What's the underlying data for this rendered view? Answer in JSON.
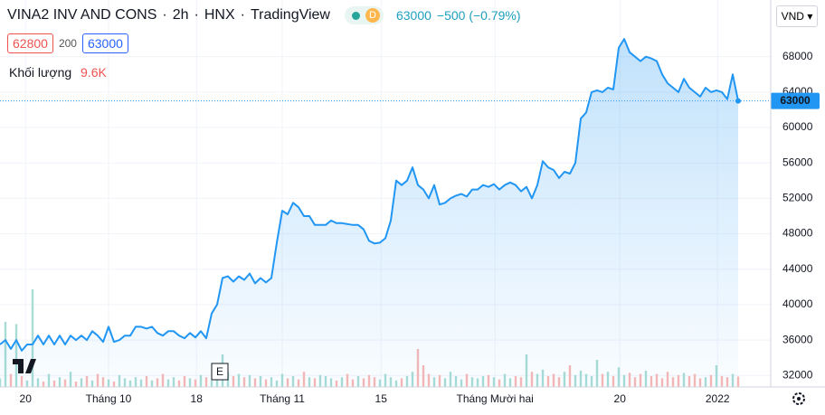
{
  "header": {
    "symbol": "VINA2 INV AND CONS",
    "separator": "·",
    "interval": "2h",
    "exchange": "HNX",
    "source": "TradingView",
    "badge": "D",
    "last": 63000,
    "change": "−500 (−0.79%)",
    "bid": 62800,
    "spread": 200,
    "ask": 63000,
    "volume_label": "Khối lượng",
    "volume_value": "9.6K",
    "currency": "VND"
  },
  "chart_data": {
    "type": "area",
    "x": [
      0,
      1,
      2,
      3,
      4,
      5,
      6,
      7,
      8,
      9,
      10,
      11,
      12,
      13,
      14,
      15,
      16,
      17,
      18,
      19,
      20,
      21,
      22,
      23,
      24,
      25,
      26,
      27,
      28,
      29,
      30,
      31,
      32,
      33,
      34,
      35,
      36,
      37,
      38,
      39,
      40,
      41,
      42,
      43,
      44,
      45,
      46,
      47,
      48,
      49,
      50,
      51,
      52,
      53,
      54,
      55,
      56,
      57,
      58,
      59,
      60,
      61,
      62,
      63,
      64,
      65,
      66,
      67,
      68,
      69,
      70,
      71,
      72,
      73,
      74,
      75,
      76,
      77,
      78,
      79,
      80,
      81,
      82,
      83,
      84,
      85,
      86,
      87,
      88,
      89,
      90,
      91,
      92,
      93,
      94,
      95,
      96,
      97,
      98,
      99,
      100,
      101,
      102,
      103,
      104,
      105,
      106,
      107,
      108,
      109,
      110,
      111,
      112,
      113,
      114,
      115,
      116,
      117,
      118,
      119,
      120,
      121,
      122,
      123,
      124,
      125,
      126,
      127,
      128,
      129,
      130,
      131,
      132,
      133,
      134,
      135,
      136
    ],
    "series": [
      {
        "name": "Price",
        "color": "#2196f3",
        "values": [
          35500,
          36000,
          35000,
          36000,
          34800,
          35500,
          35500,
          36500,
          35500,
          36500,
          35500,
          36500,
          35500,
          36500,
          36000,
          36500,
          36000,
          37000,
          36500,
          35800,
          37500,
          35800,
          36000,
          36500,
          36500,
          37500,
          37500,
          37300,
          37500,
          36800,
          36500,
          37000,
          37000,
          36500,
          36200,
          36800,
          36300,
          37000,
          36200,
          39000,
          40000,
          43000,
          43200,
          42600,
          43200,
          42800,
          43500,
          42400,
          43000,
          42500,
          43000,
          47000,
          50600,
          50200,
          51500,
          51000,
          50000,
          50000,
          49000,
          49000,
          49000,
          49500,
          49200,
          49200,
          49100,
          49000,
          49000,
          48500,
          47200,
          46900,
          47000,
          47500,
          49500,
          54000,
          53500,
          54000,
          55500,
          53500,
          53000,
          52000,
          53500,
          51300,
          51500,
          52000,
          52300,
          52500,
          52200,
          53000,
          53000,
          53500,
          53300,
          53600,
          53000,
          53500,
          53800,
          53500,
          52800,
          53300,
          52000,
          53500,
          56200,
          55500,
          55200,
          54300,
          55000,
          54800,
          56000,
          61000,
          61700,
          64000,
          64200,
          64000,
          64500,
          64300,
          69000,
          70000,
          68500,
          68000,
          67500,
          68000,
          67800,
          67500,
          66000,
          65000,
          64500,
          64000,
          65500,
          64500,
          64000,
          63500,
          64500,
          64000,
          64200,
          64000,
          63200,
          66000,
          63000
        ]
      },
      {
        "name": "Volume",
        "up_color": "#a8dcd5",
        "down_color": "#f7b7b5",
        "values": [
          8,
          60,
          12,
          58,
          10,
          6,
          90,
          8,
          5,
          12,
          6,
          9,
          7,
          14,
          5,
          8,
          10,
          6,
          12,
          9,
          7,
          5,
          11,
          8,
          6,
          9,
          7,
          10,
          6,
          8,
          12,
          7,
          9,
          6,
          10,
          8,
          7,
          11,
          9,
          6,
          8,
          30,
          14,
          10,
          12,
          9,
          11,
          8,
          10,
          7,
          9,
          6,
          12,
          8,
          10,
          7,
          14,
          9,
          8,
          11,
          10,
          8,
          6,
          9,
          12,
          7,
          10,
          8,
          11,
          9,
          7,
          12,
          9,
          6,
          8,
          10,
          14,
          35,
          20,
          12,
          9,
          11,
          8,
          14,
          10,
          7,
          12,
          9,
          8,
          10,
          11,
          9,
          7,
          12,
          8,
          10,
          9,
          30,
          14,
          12,
          16,
          10,
          12,
          9,
          14,
          20,
          11,
          15,
          12,
          10,
          25,
          12,
          14,
          10,
          18,
          11,
          13,
          9,
          12,
          15,
          10,
          12,
          8,
          14,
          9,
          11,
          13,
          10,
          12,
          8,
          9,
          11,
          20,
          10,
          9,
          12,
          9.6
        ]
      }
    ],
    "xlim": [
      0,
      142
    ],
    "xticks": [
      {
        "value": 4.7,
        "label": "20"
      },
      {
        "value": 20,
        "label": "Tháng 10"
      },
      {
        "value": 36.2,
        "label": "18"
      },
      {
        "value": 52,
        "label": "Tháng 11"
      },
      {
        "value": 70.2,
        "label": "15"
      },
      {
        "value": 91.2,
        "label": "Tháng Mười hai"
      },
      {
        "value": 114.2,
        "label": "20"
      },
      {
        "value": 132.2,
        "label": "2022"
      }
    ],
    "ylim": [
      30700,
      74400
    ],
    "yticks": [
      32000,
      36000,
      40000,
      44000,
      48000,
      52000,
      56000,
      60000,
      64000,
      68000
    ],
    "last_price": 63000,
    "earnings_marker": "E",
    "grid": true
  }
}
